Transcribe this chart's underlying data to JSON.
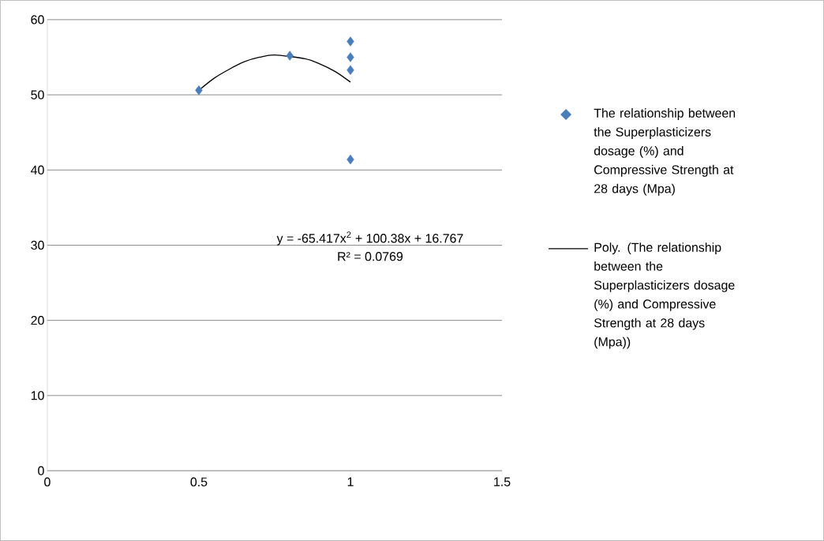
{
  "chart_data": {
    "type": "scatter",
    "xlim": [
      0,
      1.5
    ],
    "ylim": [
      0,
      60
    ],
    "xticks": [
      0,
      0.5,
      1,
      1.5
    ],
    "yticks": [
      0,
      10,
      20,
      30,
      40,
      50,
      60
    ],
    "grid": "y",
    "legend": "right",
    "marker": "diamond",
    "series": [
      {
        "name": "The relationship between the Superplasticizers dosage (%) and Compressive Strength at 28 days (Mpa)",
        "color": "#4a7ebb",
        "x": [
          0.5,
          0.8,
          1,
          1,
          1,
          1
        ],
        "values": [
          50.6,
          55.2,
          57.1,
          55.0,
          53.3,
          41.4
        ]
      },
      {
        "name": "Poly. (The relationship between the Superplasticizers dosage (%) and Compressive Strength at 28 days (Mpa))",
        "type": "line",
        "color": "#000000",
        "marker": "none",
        "x": [
          0.5,
          0.55,
          0.6,
          0.65,
          0.7,
          0.75,
          0.85,
          0.9,
          0.95,
          1.0
        ],
        "values": [
          50.6,
          52.2,
          53.4,
          54.4,
          55.0,
          55.3,
          54.8,
          54.1,
          53.1,
          51.7
        ]
      }
    ],
    "annotations": [
      "y = -65.417x$^{2}$ + 100.38x + 16.767",
      "R² = 0.0769"
    ]
  }
}
